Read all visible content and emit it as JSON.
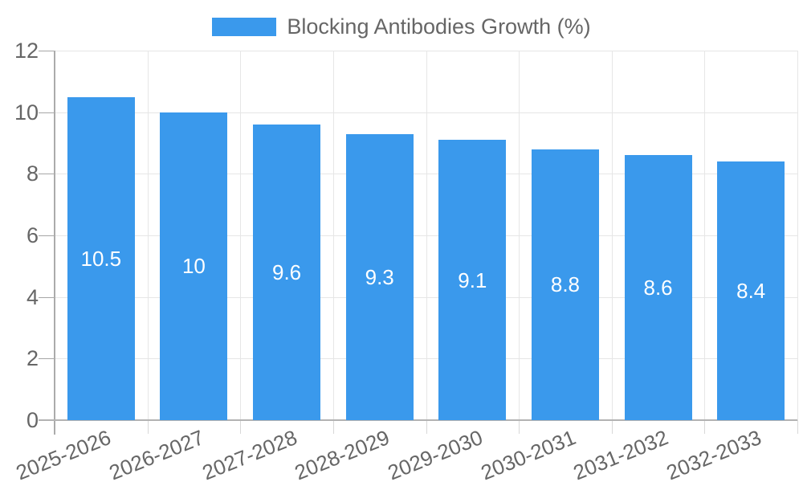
{
  "chart_data": {
    "type": "bar",
    "legend_label": "Blocking Antibodies Growth (%)",
    "legend_position": "top",
    "categories": [
      "2025-2026",
      "2026-2027",
      "2027-2028",
      "2028-2029",
      "2029-2030",
      "2030-2031",
      "2031-2032",
      "2032-2033"
    ],
    "values": [
      10.5,
      10,
      9.6,
      9.3,
      9.1,
      8.8,
      8.6,
      8.4
    ],
    "value_labels": [
      "10.5",
      "10",
      "9.6",
      "9.3",
      "9.1",
      "8.8",
      "8.6",
      "8.4"
    ],
    "xlabel": "",
    "ylabel": "",
    "ylim": [
      0,
      12
    ],
    "yticks": [
      0,
      2,
      4,
      6,
      8,
      10,
      12
    ],
    "grid": true,
    "bar_color": "#3A99EC",
    "value_label_color": "#FFFFFF",
    "axis_text_color": "#666666",
    "grid_color": "#E6E6E6",
    "axis_line_color": "#ABABAB",
    "background_color": "#FFFFFF",
    "x_tick_rotation_deg": -22
  }
}
